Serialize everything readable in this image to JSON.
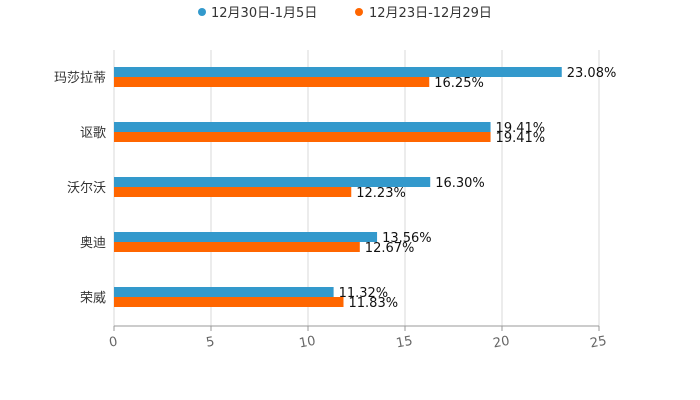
{
  "chart_data": {
    "type": "bar",
    "orientation": "horizontal",
    "title": "",
    "xlabel": "",
    "ylabel": "",
    "categories": [
      "玛莎拉蒂",
      "讴歌",
      "沃尔沃",
      "奥迪",
      "荣威"
    ],
    "xlim": [
      0,
      25
    ],
    "x_ticks": [
      0,
      5,
      10,
      15,
      20,
      25
    ],
    "grid": "vertical",
    "legend_position": "top-center",
    "series": [
      {
        "name": "12月30日-1月5日",
        "color": "#3399cc",
        "values": [
          23.08,
          19.41,
          16.3,
          13.56,
          11.32
        ],
        "labels": [
          "23.08%",
          "19.41%",
          "16.30%",
          "13.56%",
          "11.32%"
        ]
      },
      {
        "name": "12月23日-12月29日",
        "color": "#ff6600",
        "values": [
          16.25,
          19.41,
          12.23,
          12.67,
          11.83
        ],
        "labels": [
          "16.25%",
          "19.41%",
          "12.23%",
          "12.67%",
          "11.83%"
        ]
      }
    ]
  }
}
